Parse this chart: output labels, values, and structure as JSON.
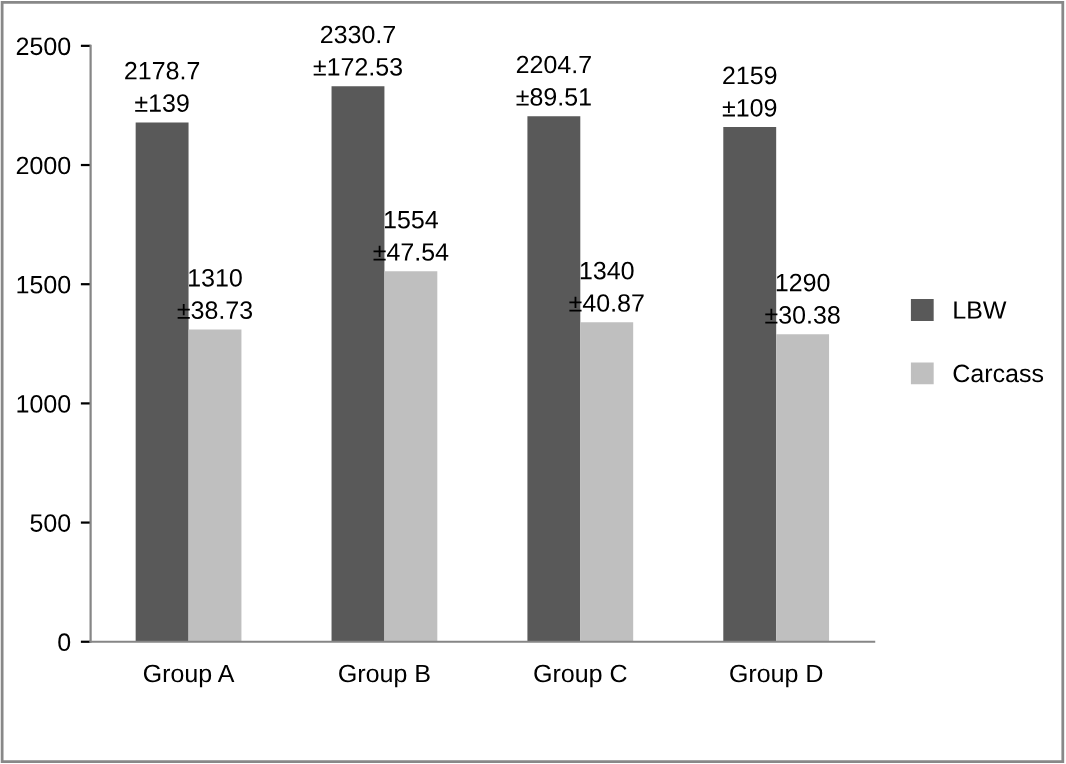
{
  "chart_data": {
    "type": "bar",
    "categories": [
      "Group A",
      "Group B",
      "Group C",
      "Group D"
    ],
    "series": [
      {
        "name": "LBW",
        "color": "#595959",
        "values": [
          2178.7,
          2330.7,
          2204.7,
          2159
        ],
        "value_labels": [
          "2178.7\n±139",
          "2330.7\n±172.53",
          "2204.7\n±89.51",
          "2159\n±109"
        ]
      },
      {
        "name": "Carcass",
        "color": "#bfbfbf",
        "values": [
          1310,
          1554,
          1340,
          1290
        ],
        "value_labels": [
          "1310\n±38.73",
          "1554\n±47.54",
          "1340\n±40.87",
          "1290\n±30.38"
        ]
      }
    ],
    "ylim": [
      0,
      2500
    ],
    "yticks": [
      0,
      500,
      1000,
      1500,
      2000,
      2500
    ],
    "grid": false,
    "legend": "right"
  }
}
